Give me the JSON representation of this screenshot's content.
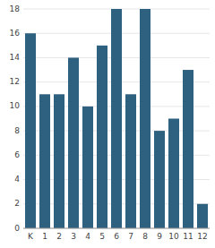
{
  "chart_data": {
    "type": "bar",
    "categories": [
      "K",
      "1",
      "2",
      "3",
      "4",
      "5",
      "6",
      "7",
      "8",
      "9",
      "10",
      "11",
      "12"
    ],
    "values": [
      16,
      11,
      11,
      14,
      10,
      15,
      18,
      11,
      18,
      8,
      9,
      13,
      2
    ],
    "color": "#2e6080",
    "ylim": [
      0,
      18
    ],
    "yticks": [
      0,
      2,
      4,
      6,
      8,
      10,
      12,
      14,
      16,
      18
    ],
    "grid": true
  }
}
